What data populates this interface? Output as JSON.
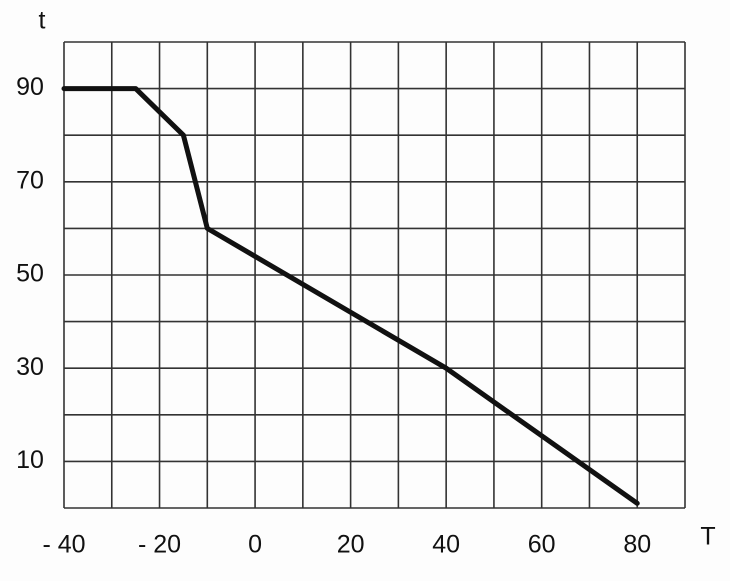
{
  "chart_data": {
    "type": "line",
    "x_label": "T",
    "y_label": "t",
    "x": [
      -40,
      -25,
      -15,
      -10,
      40,
      80
    ],
    "values": [
      90,
      90,
      80,
      60,
      30,
      1
    ],
    "color": "#111111",
    "xlim": [
      -40,
      90
    ],
    "ylim": [
      0,
      100
    ],
    "xticks": [
      {
        "value": -40,
        "label": "- 40"
      },
      {
        "value": -20,
        "label": "- 20"
      },
      0,
      20,
      40,
      60,
      80
    ],
    "yticks": [
      10,
      30,
      50,
      70,
      90
    ],
    "xgrid": [
      -40,
      -30,
      -20,
      -10,
      0,
      10,
      20,
      30,
      40,
      50,
      60,
      70,
      80,
      90
    ],
    "ygrid": [
      0,
      10,
      20,
      30,
      40,
      50,
      60,
      70,
      80,
      90,
      100
    ],
    "grid": true
  }
}
